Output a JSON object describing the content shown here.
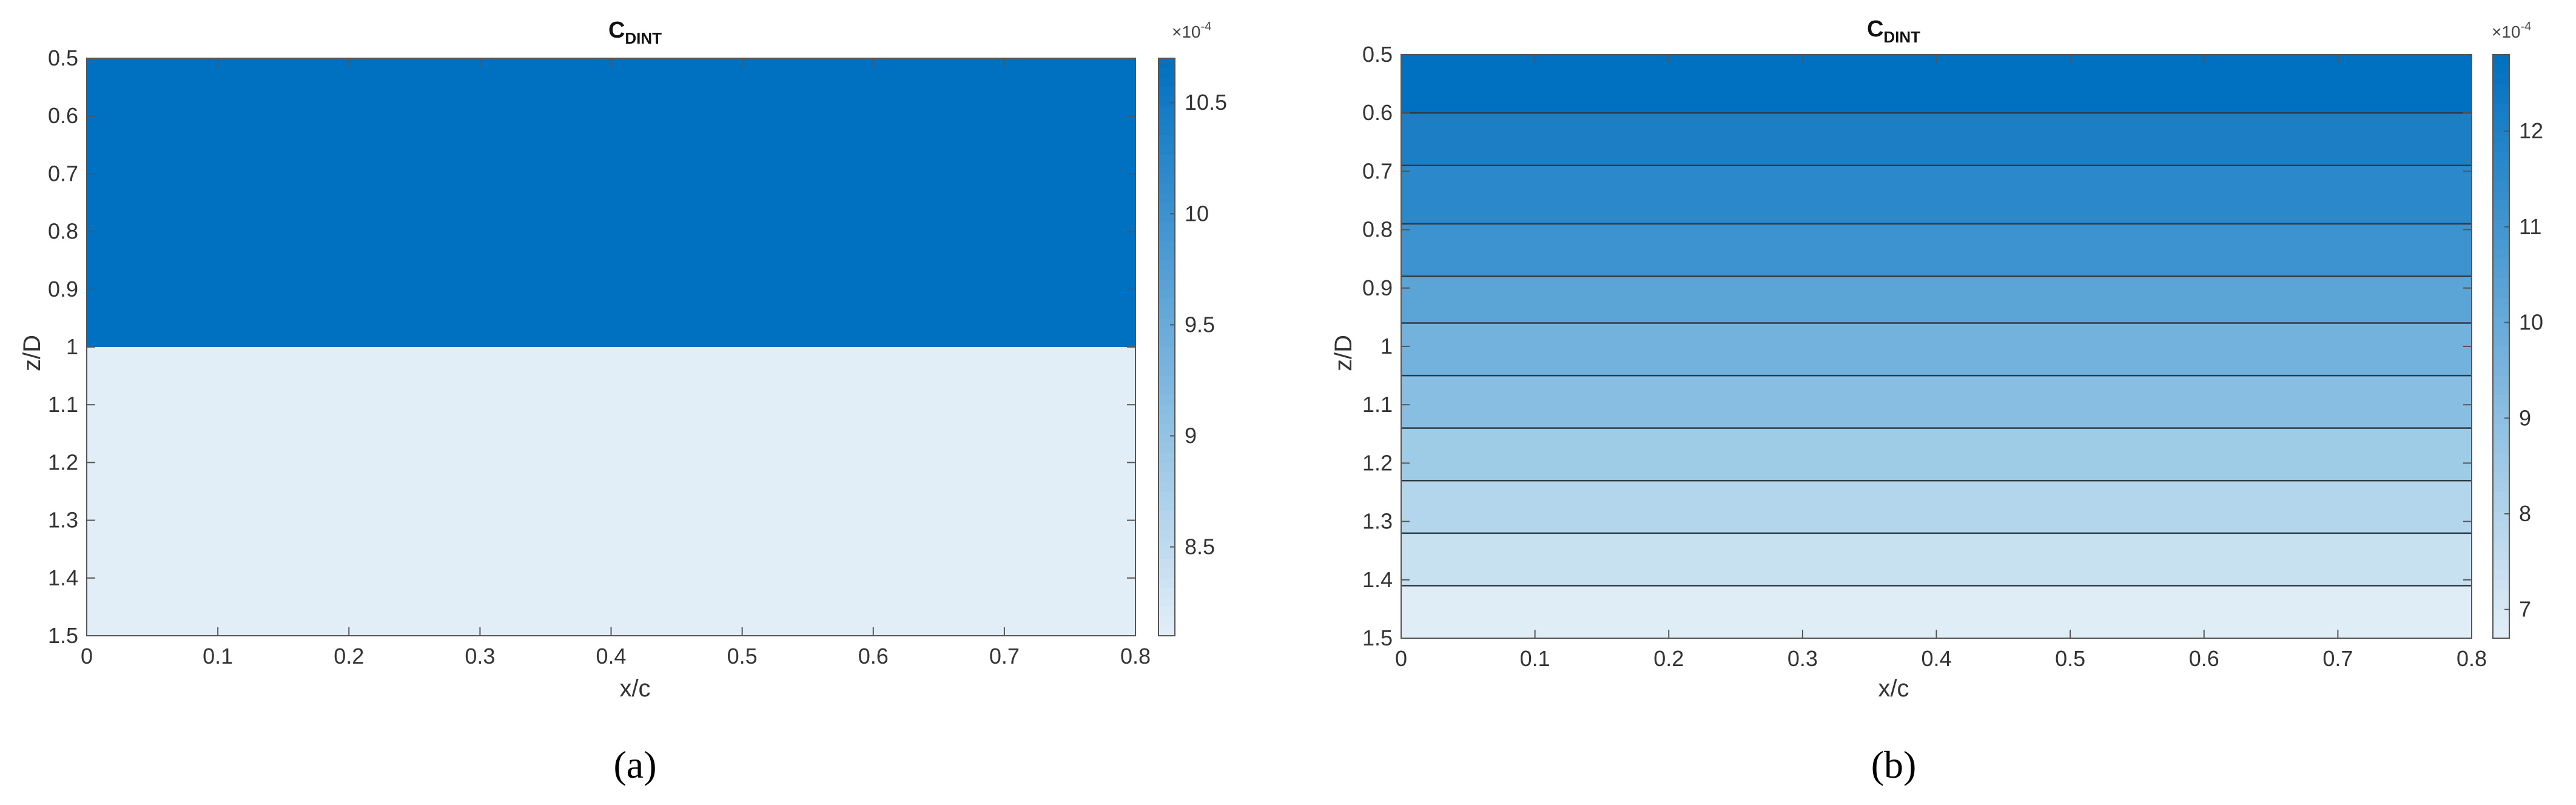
{
  "chart_data": [
    {
      "type": "heatmap",
      "panel_label": "(a)",
      "title_main": "C",
      "title_sub": "DINT",
      "xlabel": "x/c",
      "ylabel": "z/D",
      "xlim": [
        0,
        0.8
      ],
      "ylim": [
        0.5,
        1.5
      ],
      "y_reversed": true,
      "x_ticks": [
        "0",
        "0.1",
        "0.2",
        "0.3",
        "0.4",
        "0.5",
        "0.6",
        "0.7",
        "0.8"
      ],
      "y_ticks": [
        "0.5",
        "0.6",
        "0.7",
        "0.8",
        "0.9",
        "1",
        "1.1",
        "1.2",
        "1.3",
        "1.4",
        "1.5"
      ],
      "bands": [
        {
          "z_from": 0.5,
          "z_to": 1.0,
          "color": "#0070c0"
        },
        {
          "z_from": 1.0,
          "z_to": 1.5,
          "color": "#e2eef7"
        }
      ],
      "colorbar": {
        "multiplier": "×10",
        "exponent": "-4",
        "range": [
          8.1,
          10.7
        ],
        "ticks": [
          "8.5",
          "9",
          "9.5",
          "10",
          "10.5"
        ],
        "color_low": "#e2eef7",
        "color_high": "#0070c0"
      }
    },
    {
      "type": "heatmap",
      "panel_label": "(b)",
      "title_main": "C",
      "title_sub": "DINT",
      "xlabel": "x/c",
      "ylabel": "z/D",
      "xlim": [
        0,
        0.8
      ],
      "ylim": [
        0.5,
        1.5
      ],
      "y_reversed": true,
      "x_ticks": [
        "0",
        "0.1",
        "0.2",
        "0.3",
        "0.4",
        "0.5",
        "0.6",
        "0.7",
        "0.8"
      ],
      "y_ticks": [
        "0.5",
        "0.6",
        "0.7",
        "0.8",
        "0.9",
        "1",
        "1.1",
        "1.2",
        "1.3",
        "1.4",
        "1.5"
      ],
      "contour_levels_z": [
        0.5,
        0.6,
        0.69,
        0.79,
        0.88,
        0.96,
        1.05,
        1.14,
        1.23,
        1.32,
        1.41,
        1.5
      ],
      "band_colors": [
        "#0071c1",
        "#1c7fc6",
        "#2b88ca",
        "#3d93cf",
        "#5aa4d6",
        "#72b2dc",
        "#87bee1",
        "#9ecbe6",
        "#b3d6ec",
        "#c8e1f1",
        "#dfedf7"
      ],
      "colorbar": {
        "multiplier": "×10",
        "exponent": "-4",
        "range": [
          6.7,
          12.8
        ],
        "ticks": [
          "7",
          "8",
          "9",
          "10",
          "11",
          "12"
        ],
        "color_low": "#e2eef7",
        "color_high": "#0070c0"
      }
    }
  ]
}
